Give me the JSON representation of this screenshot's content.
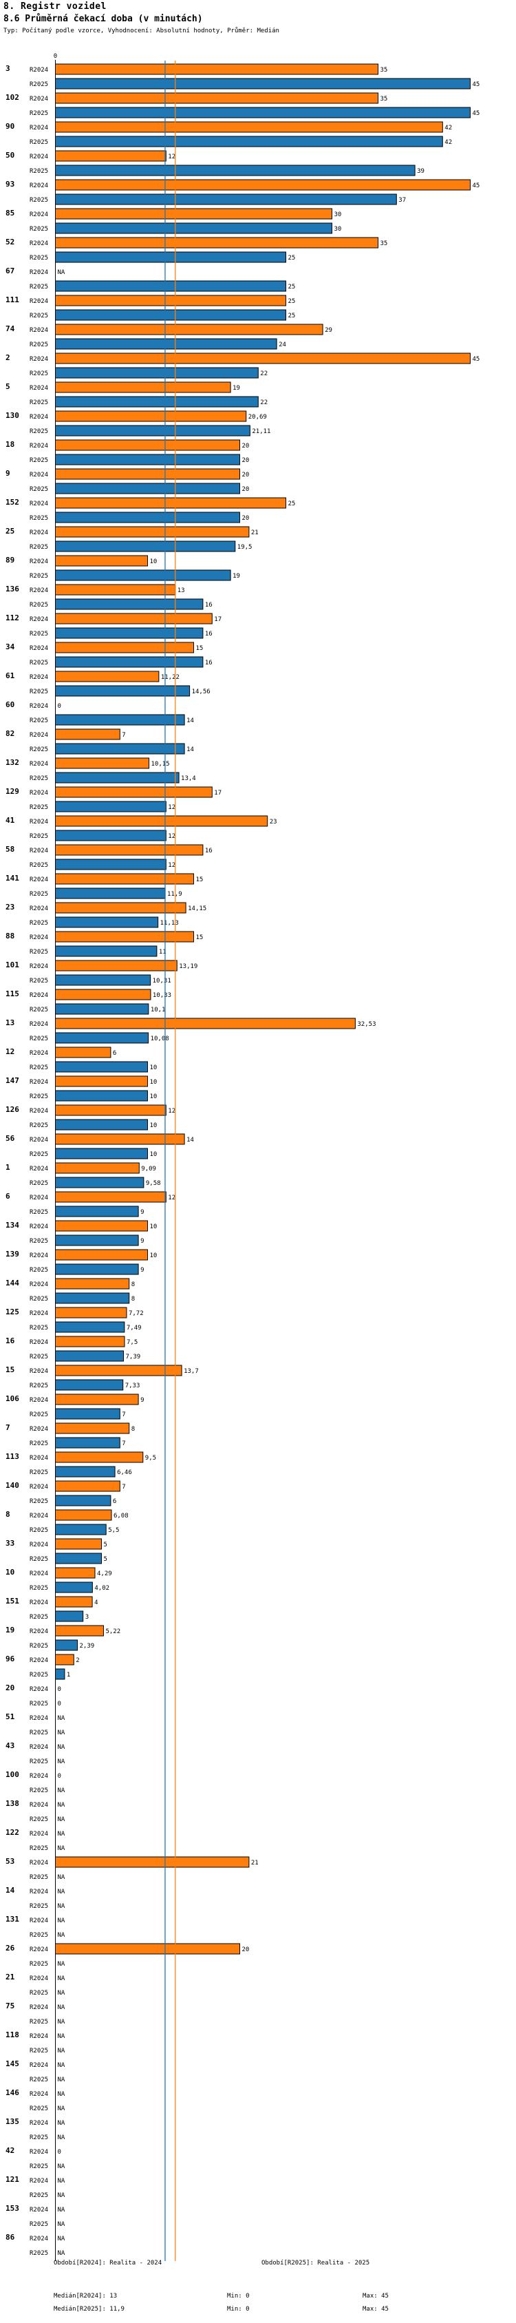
{
  "header": {
    "section": "8. Registr vozidel",
    "title": "8.6 Průměrná čekací doba (v minutách)",
    "subtitle": "Typ: Počítaný podle vzorce, Vyhodnocení: Absolutní hodnoty, Průměr: Medián"
  },
  "chart_data": {
    "type": "bar",
    "orientation": "horizontal",
    "axis_tick_label": "0",
    "xlim": [
      0,
      45
    ],
    "series": [
      {
        "name": "R2024",
        "color": "#ff7f0e"
      },
      {
        "name": "R2025",
        "color": "#1f77b4"
      }
    ],
    "categories": [
      "3",
      "102",
      "90",
      "50",
      "93",
      "85",
      "52",
      "67",
      "111",
      "74",
      "2",
      "5",
      "130",
      "18",
      "9",
      "152",
      "25",
      "89",
      "136",
      "112",
      "34",
      "61",
      "60",
      "82",
      "132",
      "129",
      "41",
      "58",
      "141",
      "23",
      "88",
      "101",
      "115",
      "13",
      "12",
      "147",
      "126",
      "56",
      "1",
      "6",
      "134",
      "139",
      "144",
      "125",
      "16",
      "15",
      "106",
      "7",
      "113",
      "140",
      "8",
      "33",
      "10",
      "151",
      "19",
      "96",
      "20",
      "51",
      "43",
      "100",
      "138",
      "122",
      "53",
      "14",
      "131",
      "26",
      "21",
      "75",
      "118",
      "145",
      "146",
      "135",
      "42",
      "121",
      "153",
      "86"
    ],
    "values_R2024": [
      35,
      35,
      42,
      12,
      45,
      30,
      35,
      null,
      25,
      29,
      45,
      19,
      20.69,
      20,
      20,
      25,
      21,
      10,
      13,
      17,
      15,
      11.22,
      0,
      7,
      10.15,
      17,
      23,
      16,
      15,
      14.15,
      15,
      13.19,
      10.33,
      32.53,
      6,
      10,
      12,
      14,
      9.09,
      12,
      10,
      10,
      8,
      7.72,
      7.5,
      13.7,
      9,
      8,
      9.5,
      7,
      6.08,
      5,
      4.29,
      4,
      5.22,
      2,
      0,
      null,
      null,
      0,
      null,
      null,
      21,
      null,
      null,
      20,
      null,
      null,
      null,
      null,
      null,
      null,
      0,
      null,
      null,
      null
    ],
    "values_R2025": [
      45,
      45,
      42,
      39,
      37,
      30,
      25,
      25,
      25,
      24,
      22,
      22,
      21.11,
      20,
      20,
      20,
      19.5,
      19,
      16,
      16,
      16,
      14.56,
      14,
      14,
      13.4,
      12,
      12,
      12,
      11.9,
      11.13,
      11,
      10.31,
      10.1,
      10.08,
      10,
      10,
      10,
      10,
      9.58,
      9,
      9,
      9,
      8,
      7.49,
      7.39,
      7.33,
      7,
      7,
      6.46,
      6,
      5.5,
      5,
      4.02,
      3,
      2.39,
      1,
      0,
      null,
      null,
      null,
      null,
      null,
      null,
      null,
      null,
      null,
      null,
      null,
      null,
      null,
      null,
      null,
      null,
      null,
      null,
      null
    ],
    "labels_R2024": [
      "35",
      "35",
      "42",
      "12",
      "45",
      "30",
      "35",
      "NA",
      "25",
      "29",
      "45",
      "19",
      "20,69",
      "20",
      "20",
      "25",
      "21",
      "10",
      "13",
      "17",
      "15",
      "11,22",
      "0",
      "7",
      "10,15",
      "17",
      "23",
      "16",
      "15",
      "14,15",
      "15",
      "13,19",
      "10,33",
      "32,53",
      "6",
      "10",
      "12",
      "14",
      "9,09",
      "12",
      "10",
      "10",
      "8",
      "7,72",
      "7,5",
      "13,7",
      "9",
      "8",
      "9,5",
      "7",
      "6,08",
      "5",
      "4,29",
      "4",
      "5,22",
      "2",
      "0",
      "NA",
      "NA",
      "0",
      "NA",
      "NA",
      "21",
      "NA",
      "NA",
      "20",
      "NA",
      "NA",
      "NA",
      "NA",
      "NA",
      "NA",
      "0",
      "NA",
      "NA",
      "NA"
    ],
    "labels_R2025": [
      "45",
      "45",
      "42",
      "39",
      "37",
      "30",
      "25",
      "25",
      "25",
      "24",
      "22",
      "22",
      "21,11",
      "20",
      "20",
      "20",
      "19,5",
      "19",
      "16",
      "16",
      "16",
      "14,56",
      "14",
      "14",
      "13,4",
      "12",
      "12",
      "12",
      "11,9",
      "11,13",
      "11",
      "10,31",
      "10,1",
      "10,08",
      "10",
      "10",
      "10",
      "10",
      "9,58",
      "9",
      "9",
      "9",
      "8",
      "7,49",
      "7,39",
      "7,33",
      "7",
      "7",
      "6,46",
      "6",
      "5,5",
      "5",
      "4,02",
      "3",
      "2,39",
      "1",
      "0",
      "NA",
      "NA",
      "NA",
      "NA",
      "NA",
      "NA",
      "NA",
      "NA",
      "NA",
      "NA",
      "NA",
      "NA",
      "NA",
      "NA",
      "NA",
      "NA",
      "NA",
      "NA",
      "NA"
    ],
    "median_R2024": 13,
    "median_R2025": 11.9
  },
  "footer": {
    "legend_2024": "Období[R2024]: Realita - 2024",
    "legend_2025": "Období[R2025]: Realita - 2025",
    "median_2024": "Medián[R2024]: 13",
    "median_2025": "Medián[R2025]: 11,9",
    "min_1": "Min: 0",
    "min_2": "Min: 0",
    "max_1": "Max: 45",
    "max_2": "Max: 45"
  }
}
